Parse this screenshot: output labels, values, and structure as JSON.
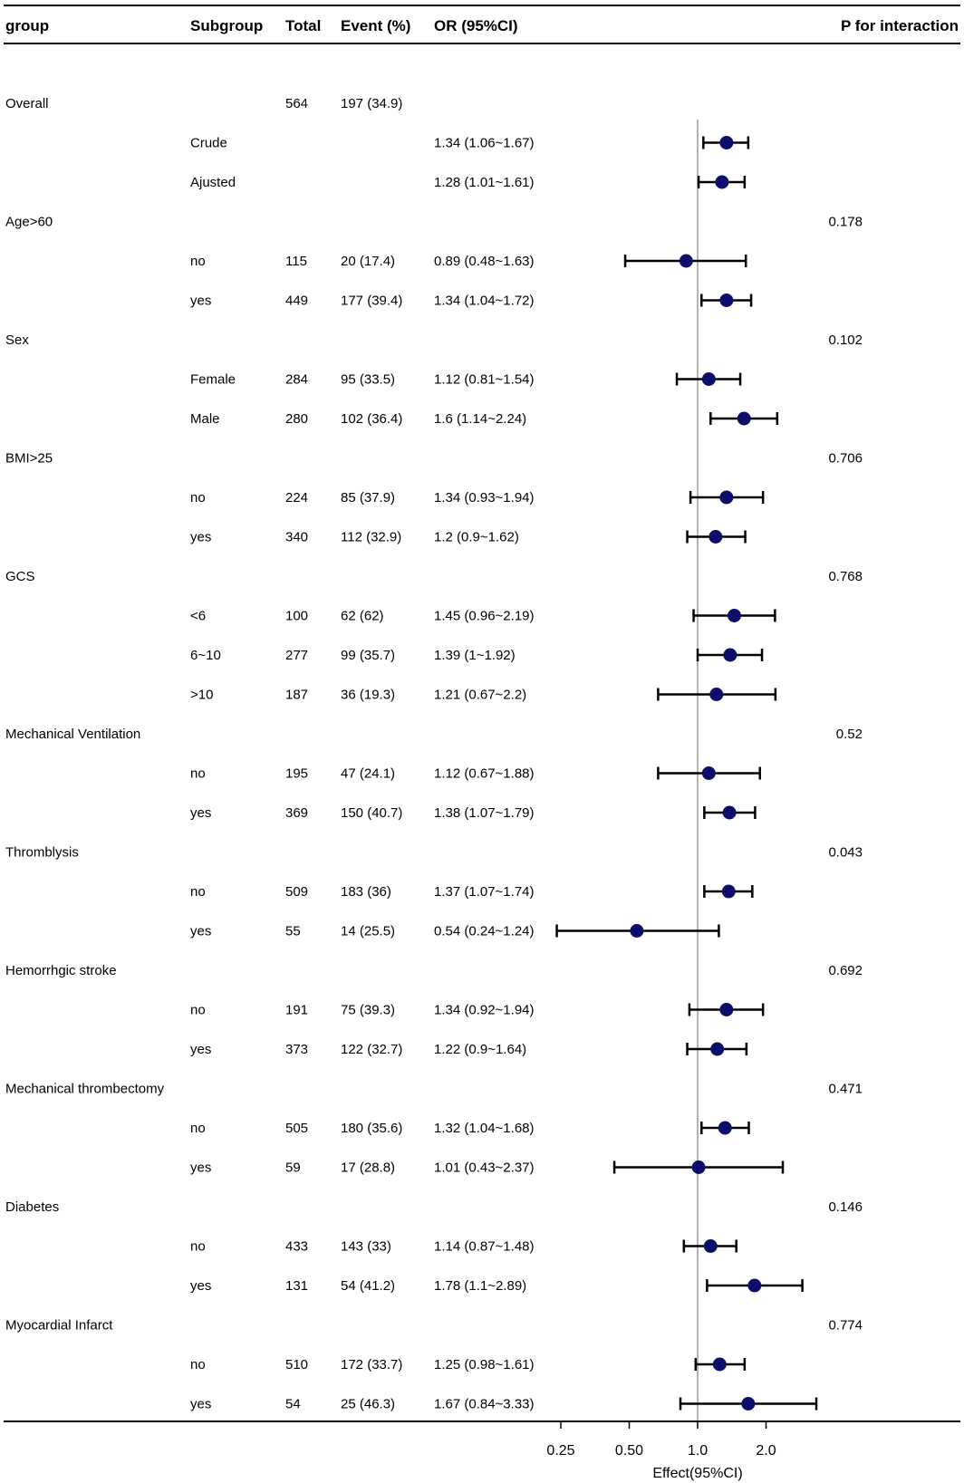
{
  "chart_data": {
    "type": "forest",
    "x_scale": "log2",
    "xlabel": "Effect(95%CI)",
    "xlim": [
      0.2,
      4.0
    ],
    "xticks": [
      0.25,
      0.5,
      1.0,
      2.0
    ],
    "xtick_labels": [
      "0.25",
      "0.50",
      "1.0",
      "2.0"
    ],
    "reference_line": 1.0,
    "columns": [
      "group",
      "Subgroup",
      "Total",
      "Event (%)",
      "OR (95%CI)",
      "P for interaction"
    ],
    "rows": [
      {
        "group": "Overall",
        "subgroup": "",
        "total": "564",
        "event": "197 (34.9)",
        "or_text": "",
        "p": ""
      },
      {
        "group": "",
        "subgroup": "Crude",
        "total": "",
        "event": "",
        "or_text": "1.34 (1.06~1.67)",
        "p": "",
        "or": 1.34,
        "lo": 1.06,
        "hi": 1.67
      },
      {
        "group": "",
        "subgroup": "Ajusted",
        "total": "",
        "event": "",
        "or_text": "1.28 (1.01~1.61)",
        "p": "",
        "or": 1.28,
        "lo": 1.01,
        "hi": 1.61
      },
      {
        "group": "Age>60",
        "subgroup": "",
        "total": "",
        "event": "",
        "or_text": "",
        "p": "0.178"
      },
      {
        "group": "",
        "subgroup": "no",
        "total": "115",
        "event": "20 (17.4)",
        "or_text": "0.89 (0.48~1.63)",
        "p": "",
        "or": 0.89,
        "lo": 0.48,
        "hi": 1.63
      },
      {
        "group": "",
        "subgroup": "yes",
        "total": "449",
        "event": "177 (39.4)",
        "or_text": "1.34 (1.04~1.72)",
        "p": "",
        "or": 1.34,
        "lo": 1.04,
        "hi": 1.72
      },
      {
        "group": "Sex",
        "subgroup": "",
        "total": "",
        "event": "",
        "or_text": "",
        "p": "0.102"
      },
      {
        "group": "",
        "subgroup": "Female",
        "total": "284",
        "event": "95 (33.5)",
        "or_text": "1.12 (0.81~1.54)",
        "p": "",
        "or": 1.12,
        "lo": 0.81,
        "hi": 1.54
      },
      {
        "group": "",
        "subgroup": "Male",
        "total": "280",
        "event": "102 (36.4)",
        "or_text": "1.6 (1.14~2.24)",
        "p": "",
        "or": 1.6,
        "lo": 1.14,
        "hi": 2.24
      },
      {
        "group": "BMI>25",
        "subgroup": "",
        "total": "",
        "event": "",
        "or_text": "",
        "p": "0.706"
      },
      {
        "group": "",
        "subgroup": "no",
        "total": "224",
        "event": "85 (37.9)",
        "or_text": "1.34 (0.93~1.94)",
        "p": "",
        "or": 1.34,
        "lo": 0.93,
        "hi": 1.94
      },
      {
        "group": "",
        "subgroup": "yes",
        "total": "340",
        "event": "112 (32.9)",
        "or_text": "1.2 (0.9~1.62)",
        "p": "",
        "or": 1.2,
        "lo": 0.9,
        "hi": 1.62
      },
      {
        "group": "GCS",
        "subgroup": "",
        "total": "",
        "event": "",
        "or_text": "",
        "p": "0.768"
      },
      {
        "group": "",
        "subgroup": "<6",
        "total": "100",
        "event": "62 (62)",
        "or_text": "1.45 (0.96~2.19)",
        "p": "",
        "or": 1.45,
        "lo": 0.96,
        "hi": 2.19
      },
      {
        "group": "",
        "subgroup": "6~10",
        "total": "277",
        "event": "99 (35.7)",
        "or_text": "1.39 (1~1.92)",
        "p": "",
        "or": 1.39,
        "lo": 1.0,
        "hi": 1.92
      },
      {
        "group": "",
        "subgroup": ">10",
        "total": "187",
        "event": "36 (19.3)",
        "or_text": "1.21 (0.67~2.2)",
        "p": "",
        "or": 1.21,
        "lo": 0.67,
        "hi": 2.2
      },
      {
        "group": "Mechanical Ventilation",
        "subgroup": "",
        "total": "",
        "event": "",
        "or_text": "",
        "p": "0.52"
      },
      {
        "group": "",
        "subgroup": "no",
        "total": "195",
        "event": "47 (24.1)",
        "or_text": "1.12 (0.67~1.88)",
        "p": "",
        "or": 1.12,
        "lo": 0.67,
        "hi": 1.88
      },
      {
        "group": "",
        "subgroup": "yes",
        "total": "369",
        "event": "150 (40.7)",
        "or_text": "1.38 (1.07~1.79)",
        "p": "",
        "or": 1.38,
        "lo": 1.07,
        "hi": 1.79
      },
      {
        "group": "Thromblysis",
        "subgroup": "",
        "total": "",
        "event": "",
        "or_text": "",
        "p": "0.043"
      },
      {
        "group": "",
        "subgroup": "no",
        "total": "509",
        "event": "183 (36)",
        "or_text": "1.37 (1.07~1.74)",
        "p": "",
        "or": 1.37,
        "lo": 1.07,
        "hi": 1.74
      },
      {
        "group": "",
        "subgroup": "yes",
        "total": "55",
        "event": "14 (25.5)",
        "or_text": "0.54 (0.24~1.24)",
        "p": "",
        "or": 0.54,
        "lo": 0.24,
        "hi": 1.24
      },
      {
        "group": "Hemorrhgic stroke",
        "subgroup": "",
        "total": "",
        "event": "",
        "or_text": "",
        "p": "0.692"
      },
      {
        "group": "",
        "subgroup": "no",
        "total": "191",
        "event": "75 (39.3)",
        "or_text": "1.34 (0.92~1.94)",
        "p": "",
        "or": 1.34,
        "lo": 0.92,
        "hi": 1.94
      },
      {
        "group": "",
        "subgroup": "yes",
        "total": "373",
        "event": "122 (32.7)",
        "or_text": "1.22 (0.9~1.64)",
        "p": "",
        "or": 1.22,
        "lo": 0.9,
        "hi": 1.64
      },
      {
        "group": "Mechanical thrombectomy",
        "subgroup": "",
        "total": "",
        "event": "",
        "or_text": "",
        "p": "0.471"
      },
      {
        "group": "",
        "subgroup": "no",
        "total": "505",
        "event": "180 (35.6)",
        "or_text": "1.32 (1.04~1.68)",
        "p": "",
        "or": 1.32,
        "lo": 1.04,
        "hi": 1.68
      },
      {
        "group": "",
        "subgroup": "yes",
        "total": "59",
        "event": "17 (28.8)",
        "or_text": "1.01 (0.43~2.37)",
        "p": "",
        "or": 1.01,
        "lo": 0.43,
        "hi": 2.37
      },
      {
        "group": "Diabetes",
        "subgroup": "",
        "total": "",
        "event": "",
        "or_text": "",
        "p": "0.146"
      },
      {
        "group": "",
        "subgroup": "no",
        "total": "433",
        "event": "143 (33)",
        "or_text": "1.14 (0.87~1.48)",
        "p": "",
        "or": 1.14,
        "lo": 0.87,
        "hi": 1.48
      },
      {
        "group": "",
        "subgroup": "yes",
        "total": "131",
        "event": "54 (41.2)",
        "or_text": "1.78 (1.1~2.89)",
        "p": "",
        "or": 1.78,
        "lo": 1.1,
        "hi": 2.89
      },
      {
        "group": "Myocardial Infarct",
        "subgroup": "",
        "total": "",
        "event": "",
        "or_text": "",
        "p": "0.774"
      },
      {
        "group": "",
        "subgroup": "no",
        "total": "510",
        "event": "172 (33.7)",
        "or_text": "1.25 (0.98~1.61)",
        "p": "",
        "or": 1.25,
        "lo": 0.98,
        "hi": 1.61
      },
      {
        "group": "",
        "subgroup": "yes",
        "total": "54",
        "event": "25 (46.3)",
        "or_text": "1.67 (0.84~3.33)",
        "p": "",
        "or": 1.67,
        "lo": 0.84,
        "hi": 3.33
      }
    ],
    "colors": {
      "point": "#0d0d6b",
      "whisker": "#000000",
      "reference": "#9a9a9a"
    }
  }
}
